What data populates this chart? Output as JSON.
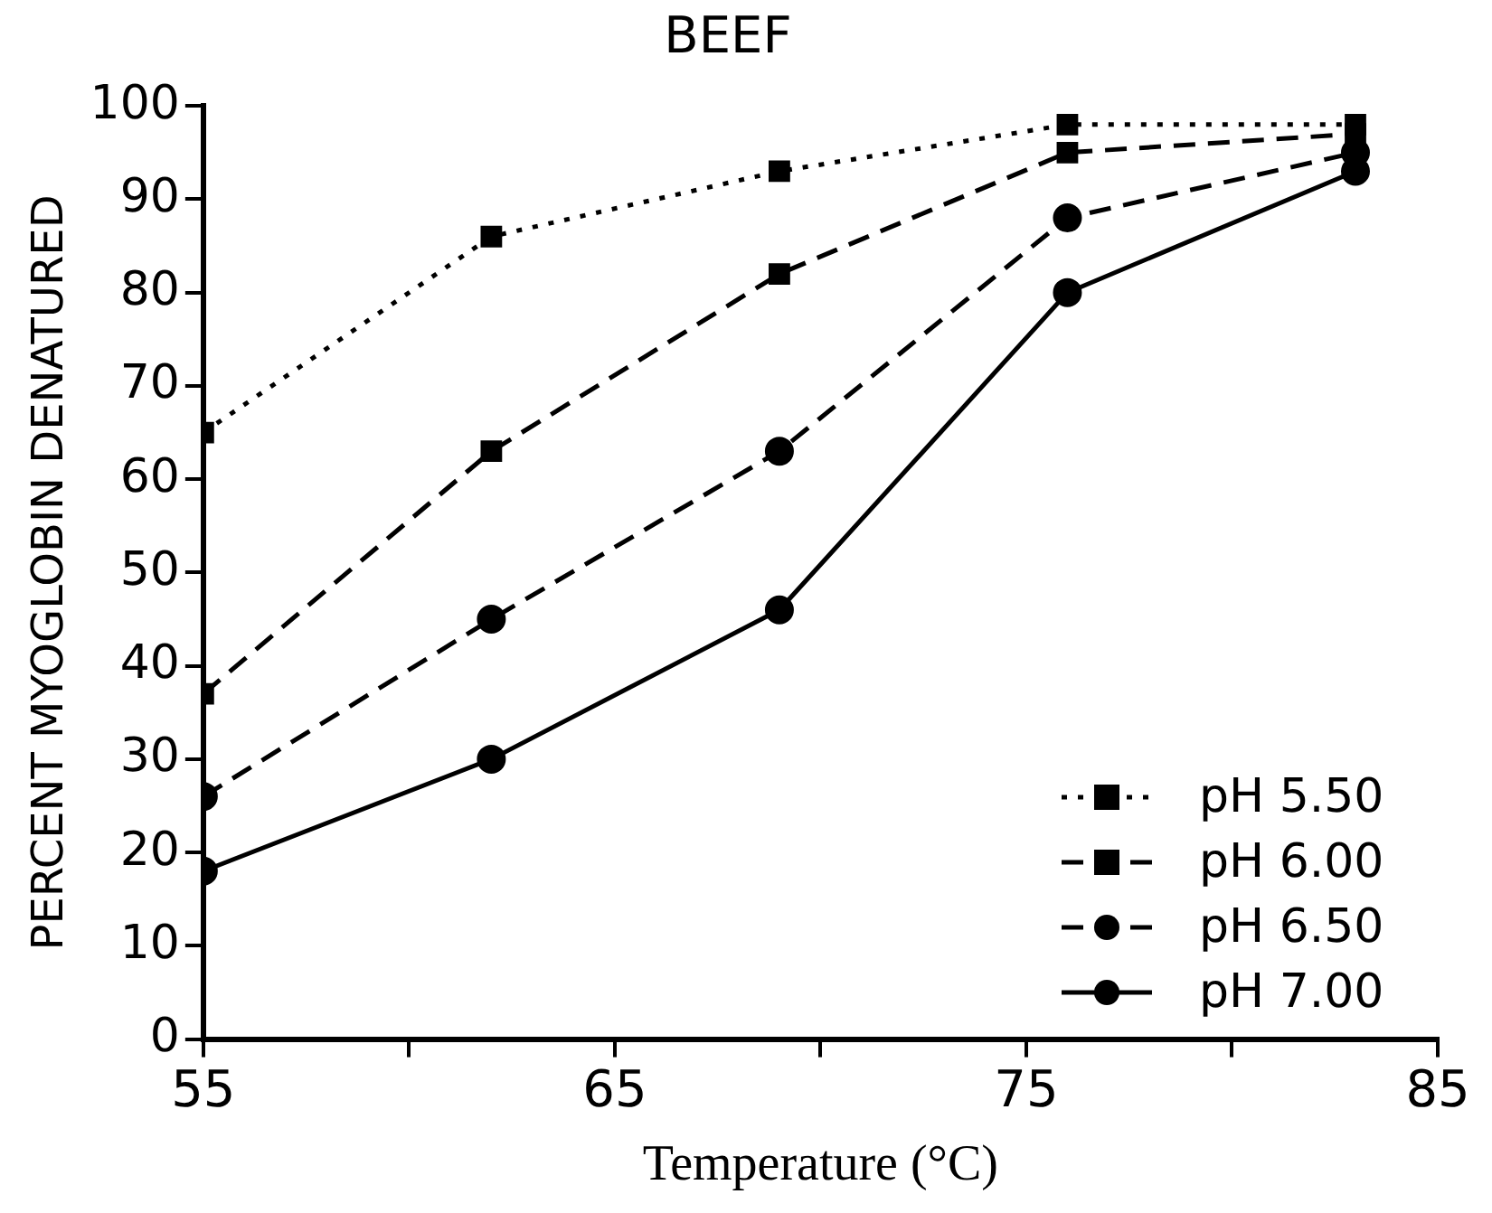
{
  "chart_data": {
    "type": "line",
    "title": "BEEF",
    "xlabel": "Temperature (°C)",
    "ylabel": "PERCENT MYOGLOBIN DENATURED",
    "x": [
      55,
      62,
      69,
      76,
      83
    ],
    "series": [
      {
        "name": "pH 5.50",
        "color": "#000000",
        "marker": "square",
        "line_style": "dotted",
        "values": [
          65,
          86,
          93,
          98,
          98
        ]
      },
      {
        "name": "pH 6.00",
        "color": "#000000",
        "marker": "square",
        "line_style": "dashed",
        "values": [
          37,
          63,
          82,
          95,
          97
        ]
      },
      {
        "name": "pH 6.50",
        "color": "#000000",
        "marker": "circle",
        "line_style": "dashed",
        "values": [
          26,
          45,
          63,
          88,
          95
        ]
      },
      {
        "name": "pH 7.00",
        "color": "#000000",
        "marker": "circle",
        "line_style": "solid",
        "values": [
          18,
          30,
          46,
          80,
          93
        ]
      }
    ],
    "xlim": [
      55,
      85
    ],
    "xticks": [
      55,
      {
        "value": 60,
        "label": null
      },
      65,
      {
        "value": 70,
        "label": null
      },
      75,
      {
        "value": 80,
        "label": null
      },
      85
    ],
    "ylim": [
      0,
      100
    ],
    "yticks": [
      0,
      10,
      20,
      30,
      40,
      50,
      60,
      70,
      80,
      90,
      100
    ],
    "grid": false,
    "legend": "bottom right"
  }
}
